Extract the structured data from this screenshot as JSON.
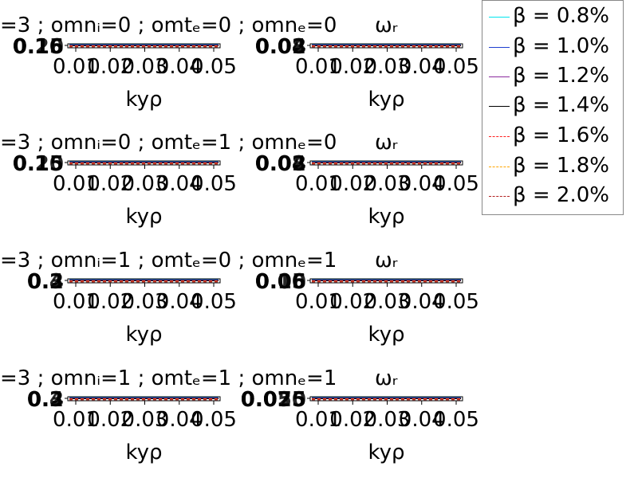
{
  "chart_data": [
    {
      "type": "line",
      "title": "=3 ; omnᵢ=0 ; omtₑ=0 ; omnₑ=0",
      "xlabel": "kyρ",
      "ylabel": "",
      "x_ticks": [
        "0.01",
        "0.02",
        "0.03",
        "0.04",
        "0.05"
      ],
      "y_ticks": [
        "0.25",
        "0.16",
        "0.10"
      ],
      "series": [
        {
          "name": "β = 0.8%"
        },
        {
          "name": "β = 1.0%"
        },
        {
          "name": "β = 1.2%"
        },
        {
          "name": "β = 1.4%"
        },
        {
          "name": "β = 1.6%"
        },
        {
          "name": "β = 1.8%"
        },
        {
          "name": "β = 2.0%"
        }
      ]
    },
    {
      "type": "line",
      "title": "ωᵣ",
      "xlabel": "kyρ",
      "ylabel": "",
      "x_ticks": [
        "0.01",
        "0.02",
        "0.03",
        "0.04",
        "0.05"
      ],
      "y_ticks": [
        "0.08",
        "0.04",
        "0.02"
      ],
      "series": [
        {
          "name": "β = 0.8%"
        },
        {
          "name": "β = 1.0%"
        },
        {
          "name": "β = 1.2%"
        },
        {
          "name": "β = 1.4%"
        },
        {
          "name": "β = 1.6%"
        },
        {
          "name": "β = 1.8%"
        },
        {
          "name": "β = 2.0%"
        }
      ]
    },
    {
      "type": "line",
      "title": "=3 ; omnᵢ=0 ; omtₑ=1 ; omnₑ=0",
      "xlabel": "kyρ",
      "ylabel": "",
      "x_ticks": [
        "0.01",
        "0.02",
        "0.03",
        "0.04",
        "0.05"
      ],
      "y_ticks": [
        "0.25",
        "0.15",
        "0.10"
      ],
      "series": [
        {
          "name": "β = 0.8%"
        },
        {
          "name": "β = 1.0%"
        },
        {
          "name": "β = 1.2%"
        },
        {
          "name": "β = 1.4%"
        },
        {
          "name": "β = 1.6%"
        },
        {
          "name": "β = 1.8%"
        },
        {
          "name": "β = 2.0%"
        }
      ]
    },
    {
      "type": "line",
      "title": "ωᵣ",
      "xlabel": "kyρ",
      "ylabel": "",
      "x_ticks": [
        "0.01",
        "0.02",
        "0.03",
        "0.04",
        "0.05"
      ],
      "y_ticks": [
        "0.08",
        "0.04",
        "0.02"
      ],
      "series": [
        {
          "name": "β = 0.8%"
        },
        {
          "name": "β = 1.0%"
        },
        {
          "name": "β = 1.2%"
        },
        {
          "name": "β = 1.4%"
        },
        {
          "name": "β = 1.6%"
        },
        {
          "name": "β = 1.8%"
        },
        {
          "name": "β = 2.0%"
        }
      ]
    },
    {
      "type": "line",
      "title": "=3 ; omnᵢ=1 ; omtₑ=0 ; omnₑ=1",
      "xlabel": "kyρ",
      "ylabel": "",
      "x_ticks": [
        "0.01",
        "0.02",
        "0.03",
        "0.04",
        "0.05"
      ],
      "y_ticks": [
        "0.4",
        "0.3",
        "0.2"
      ],
      "series": [
        {
          "name": "β = 0.8%"
        },
        {
          "name": "β = 1.0%"
        },
        {
          "name": "β = 1.2%"
        },
        {
          "name": "β = 1.4%"
        },
        {
          "name": "β = 1.6%"
        },
        {
          "name": "β = 1.8%"
        },
        {
          "name": "β = 2.0%"
        }
      ]
    },
    {
      "type": "line",
      "title": "ωᵣ",
      "xlabel": "kyρ",
      "ylabel": "",
      "x_ticks": [
        "0.01",
        "0.02",
        "0.03",
        "0.04",
        "0.05"
      ],
      "y_ticks": [
        "0.10",
        "0.06",
        "0.05"
      ],
      "series": [
        {
          "name": "β = 0.8%"
        },
        {
          "name": "β = 1.0%"
        },
        {
          "name": "β = 1.2%"
        },
        {
          "name": "β = 1.4%"
        },
        {
          "name": "β = 1.6%"
        },
        {
          "name": "β = 1.8%"
        },
        {
          "name": "β = 2.0%"
        }
      ]
    },
    {
      "type": "line",
      "title": "=3 ; omnᵢ=1 ; omtₑ=1 ; omnₑ=1",
      "xlabel": "kyρ",
      "ylabel": "",
      "x_ticks": [
        "0.01",
        "0.02",
        "0.03",
        "0.04",
        "0.05"
      ],
      "y_ticks": [
        "0.4",
        "0.3",
        "0.2"
      ],
      "series": [
        {
          "name": "β = 0.8%"
        },
        {
          "name": "β = 1.0%"
        },
        {
          "name": "β = 1.2%"
        },
        {
          "name": "β = 1.4%"
        },
        {
          "name": "β = 1.6%"
        },
        {
          "name": "β = 1.8%"
        },
        {
          "name": "β = 2.0%"
        }
      ]
    },
    {
      "type": "line",
      "title": "ωᵣ",
      "xlabel": "kyρ",
      "ylabel": "",
      "x_ticks": [
        "0.01",
        "0.02",
        "0.03",
        "0.04",
        "0.05"
      ],
      "y_ticks": [
        "0.025",
        "0.050",
        "0.075"
      ],
      "series": [
        {
          "name": "β = 0.8%"
        },
        {
          "name": "β = 1.0%"
        },
        {
          "name": "β = 1.2%"
        },
        {
          "name": "β = 1.4%"
        },
        {
          "name": "β = 1.6%"
        },
        {
          "name": "β = 1.8%"
        },
        {
          "name": "β = 2.0%"
        }
      ]
    }
  ],
  "legend": {
    "items": [
      {
        "label": "β = 0.8%",
        "color": "#00e5ee",
        "style": "solid"
      },
      {
        "label": "β = 1.0%",
        "color": "#1f3fd0",
        "style": "solid"
      },
      {
        "label": "β = 1.2%",
        "color": "#8b2a9e",
        "style": "solid"
      },
      {
        "label": "β = 1.4%",
        "color": "#000000",
        "style": "solid"
      },
      {
        "label": "β = 1.6%",
        "color": "#ff2020",
        "style": "dashed"
      },
      {
        "label": "β = 1.8%",
        "color": "#ffa500",
        "style": "dashed"
      },
      {
        "label": "β = 2.0%",
        "color": "#b22222",
        "style": "dashed"
      }
    ]
  }
}
